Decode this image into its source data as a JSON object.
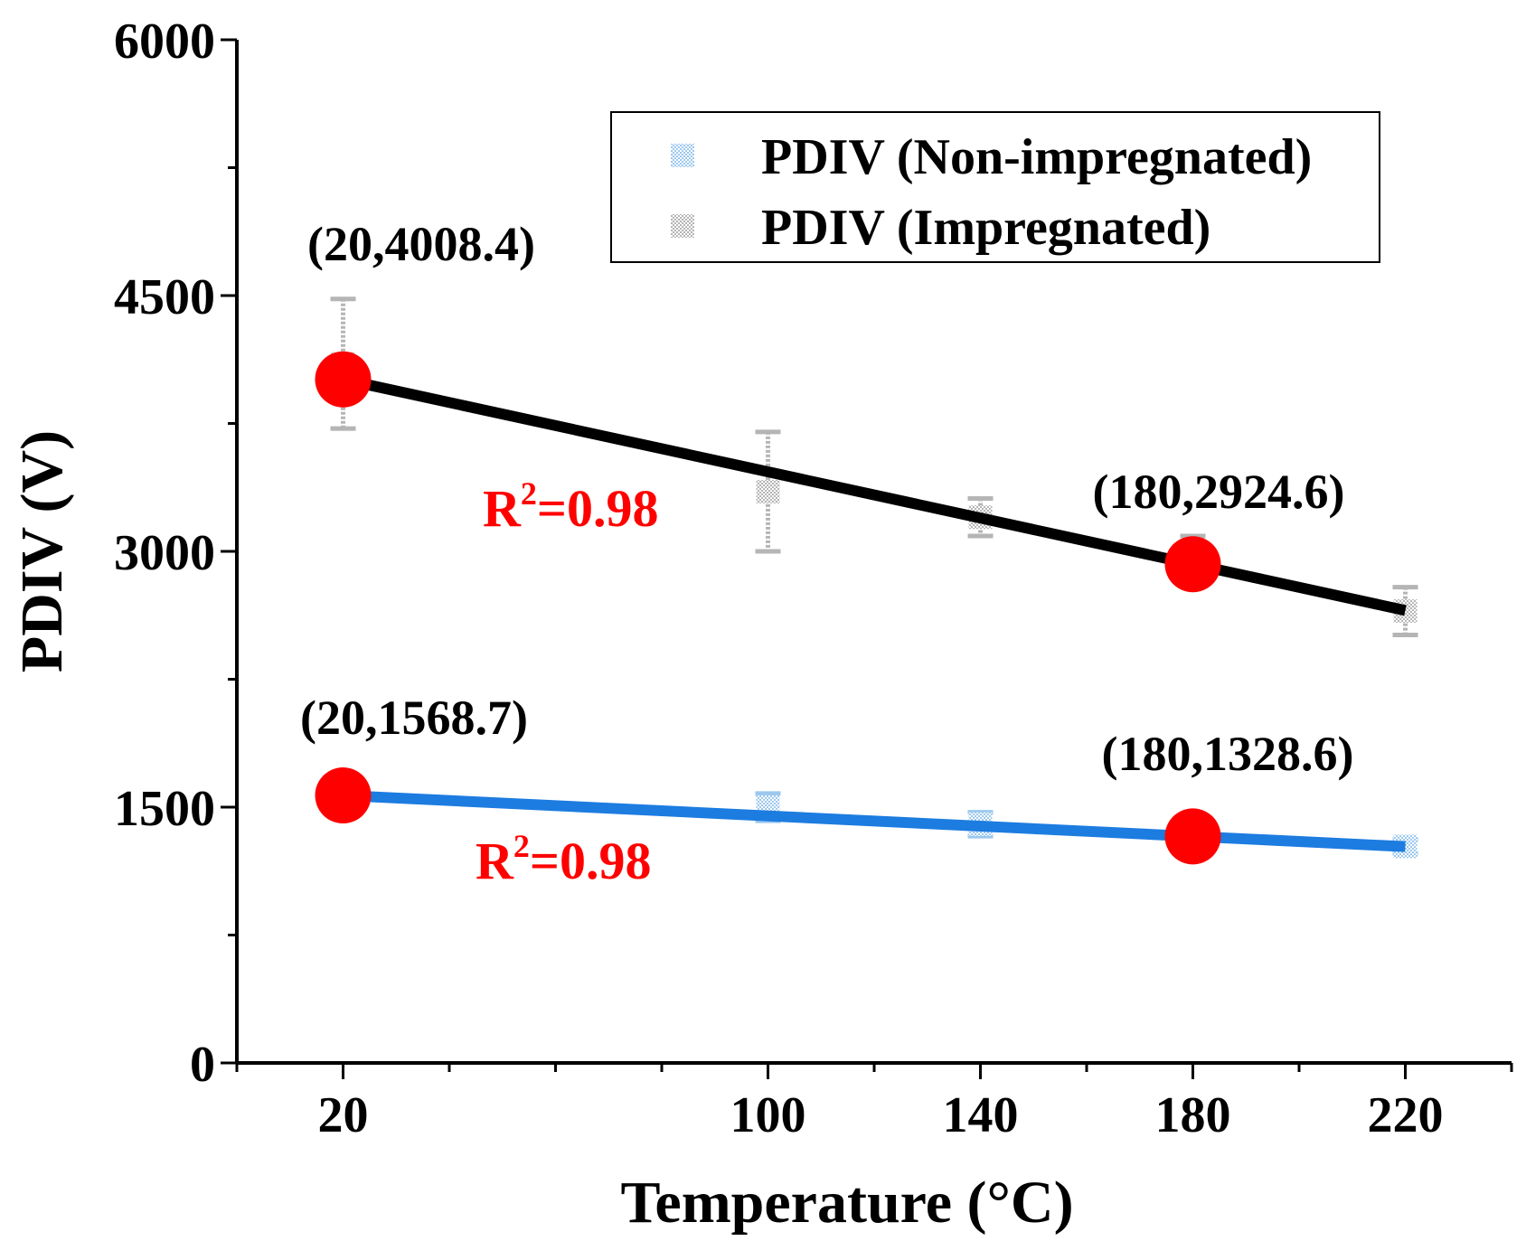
{
  "chart_data": {
    "type": "scatter",
    "title": "",
    "xlabel": "Temperature (°C)",
    "ylabel": "PDIV (V)",
    "xlim": [
      0,
      240
    ],
    "ylim": [
      0,
      6000
    ],
    "x_ticks": [
      20,
      100,
      140,
      180,
      220
    ],
    "x_tick_labels": [
      "20",
      "100",
      "140",
      "180",
      "220"
    ],
    "y_ticks": [
      0,
      1500,
      3000,
      4500,
      6000
    ],
    "y_tick_labels": [
      "0",
      "1500",
      "3000",
      "4500",
      "6000"
    ],
    "series": [
      {
        "name": "PDIV (Non-impregnated)",
        "color": "#1c7ce0",
        "marker_color": "#9cc8ee",
        "x": [
          20,
          100,
          140,
          180,
          220
        ],
        "y": [
          1568.7,
          1500,
          1400,
          1328.6,
          1270
        ],
        "yerr": [
          40,
          80,
          70,
          50,
          40
        ],
        "fit": {
          "x": [
            20,
            220
          ],
          "y": [
            1568.7,
            1268.6
          ],
          "r2_label": "R",
          "r2_sup": "2",
          "r2_value": "=0.98"
        }
      },
      {
        "name": "PDIV (Impregnated)",
        "color": "#000000",
        "marker_color": "#b5b5b5",
        "x": [
          20,
          100,
          140,
          180,
          220
        ],
        "y": [
          4100,
          3350,
          3200,
          3000,
          2650
        ],
        "yerr": [
          380,
          350,
          110,
          90,
          140
        ],
        "fit": {
          "x": [
            20,
            220
          ],
          "y": [
            4008.4,
            2653.6
          ],
          "r2_label": "R",
          "r2_sup": "2",
          "r2_value": "=0.98"
        }
      }
    ],
    "highlight_color": "#ff0000",
    "highlights": [
      {
        "x": 20,
        "y": 4008.4,
        "label": "(20,4008.4)"
      },
      {
        "x": 180,
        "y": 2924.6,
        "label": "(180,2924.6)"
      },
      {
        "x": 20,
        "y": 1568.7,
        "label": "(20,1568.7)"
      },
      {
        "x": 180,
        "y": 1328.6,
        "label": "(180,1328.6)"
      }
    ],
    "legend": {
      "position": "top-right",
      "entries": [
        "PDIV (Non-impregnated)",
        "PDIV (Impregnated)"
      ]
    }
  }
}
